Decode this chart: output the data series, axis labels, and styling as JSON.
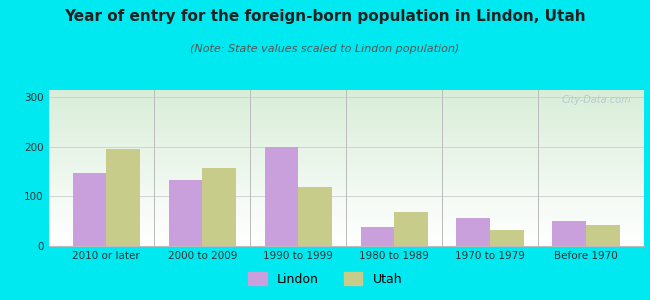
{
  "title": "Year of entry for the foreign-born population in Lindon, Utah",
  "subtitle": "(Note: State values scaled to Lindon population)",
  "categories": [
    "2010 or later",
    "2000 to 2009",
    "1990 to 1999",
    "1980 to 1989",
    "1970 to 1979",
    "Before 1970"
  ],
  "lindon_values": [
    148,
    133,
    200,
    38,
    57,
    50
  ],
  "utah_values": [
    195,
    158,
    120,
    68,
    32,
    43
  ],
  "lindon_color": "#c9a0dc",
  "utah_color": "#c8cc8a",
  "bar_width": 0.35,
  "ylim": [
    0,
    315
  ],
  "yticks": [
    0,
    100,
    200,
    300
  ],
  "background_outer": "#00e8f0",
  "grid_color": "#cccccc",
  "title_fontsize": 11,
  "subtitle_fontsize": 8,
  "tick_fontsize": 7.5,
  "legend_fontsize": 9,
  "title_color": "#222222",
  "subtitle_color": "#555555",
  "watermark_text": "City-Data.com",
  "watermark_color": "#b0c8c8",
  "separator_color": "#bbbbbb",
  "chart_bg_top": "#d8edd8",
  "chart_bg_bottom": "#ffffff"
}
